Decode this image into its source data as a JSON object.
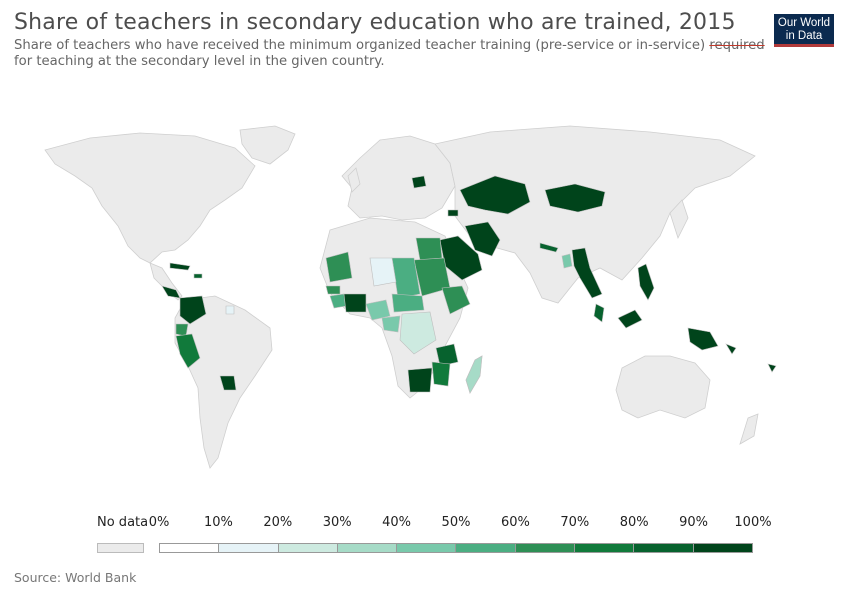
{
  "header": {
    "title": "Share of teachers in secondary education who are trained, 2015",
    "subtitle_line1": "Share of teachers who have received the minimum organized teacher training (pre-service or in-service)",
    "subtitle_cut": "required",
    "subtitle_line2": "for teaching at the secondary level in the given country."
  },
  "logo": {
    "line1": "Our World",
    "line2": "in Data"
  },
  "legend": {
    "nodata_label": "No data",
    "ticks": [
      "0%",
      "10%",
      "20%",
      "30%",
      "40%",
      "50%",
      "60%",
      "70%",
      "80%",
      "90%",
      "100%"
    ],
    "colors": [
      "#ffffff",
      "#e6f3f7",
      "#cdeae0",
      "#a6dbc7",
      "#79c9ab",
      "#4bae82",
      "#2e8f55",
      "#117a3b",
      "#07622e",
      "#00441b"
    ]
  },
  "colors": {
    "no_data": "#ebebeb",
    "land_stroke": "#cfcfcf",
    "high": "#00441b",
    "logo_bg": "#0b2a4f"
  },
  "source": "Source: World Bank"
}
